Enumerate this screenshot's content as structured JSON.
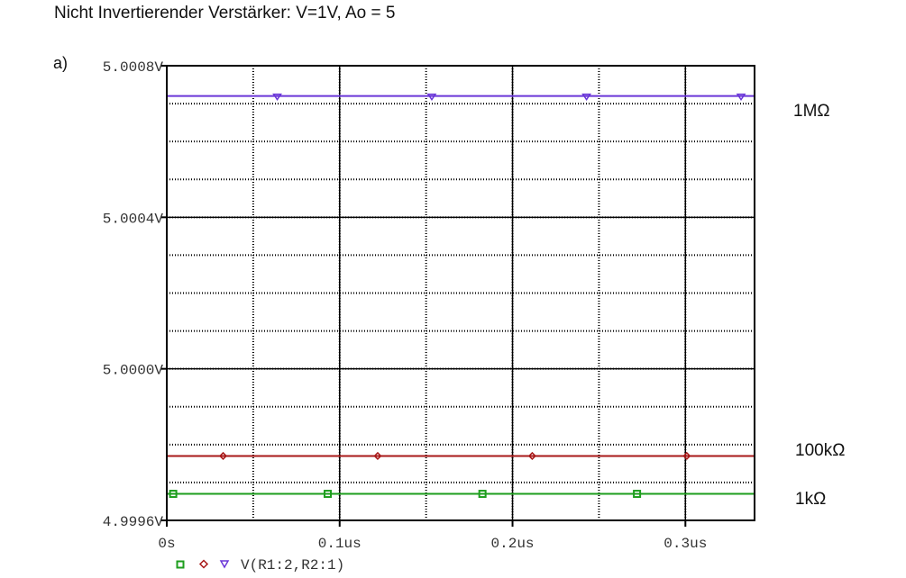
{
  "page": {
    "title": "Nicht Invertierender Verstärker: V=1V, Ao = 5",
    "panel_label": "a)"
  },
  "annotations": {
    "r_1meg": "1MΩ",
    "r_100k": "100kΩ",
    "r_1k": "1kΩ"
  },
  "legend": {
    "trace_label": "V(R1:2,R2:1)"
  },
  "chart_data": {
    "type": "line",
    "title": "",
    "xlabel": "",
    "ylabel": "",
    "x_unit": "us",
    "xlim": [
      0,
      0.34
    ],
    "ylim": [
      4.9996,
      5.0008
    ],
    "x_ticks": [
      0,
      0.1,
      0.2,
      0.3
    ],
    "x_tick_labels": [
      "0s",
      "0.1us",
      "0.2us",
      "0.3us"
    ],
    "y_ticks": [
      4.9996,
      5.0,
      5.0004,
      5.0008
    ],
    "y_tick_labels": [
      "4.9996V",
      "5.0000V",
      "5.0004V",
      "5.0008V"
    ],
    "grid": true,
    "x_minor_per_major": 2,
    "y_minor_per_major": 4,
    "series": [
      {
        "label": "1MΩ",
        "color": "#6a36d8",
        "marker": "triangle-down",
        "x": [
          0,
          0.34
        ],
        "y": [
          5.00072,
          5.00072
        ],
        "marker_x": [
          0.0639,
          0.1533,
          0.2428,
          0.3322
        ]
      },
      {
        "label": "100kΩ",
        "color": "#a81818",
        "marker": "diamond",
        "x": [
          0,
          0.34
        ],
        "y": [
          4.99977,
          4.99977
        ],
        "marker_x": [
          0.0326,
          0.122,
          0.2114,
          0.3008
        ]
      },
      {
        "label": "1kΩ",
        "color": "#1e9e1e",
        "marker": "square",
        "x": [
          0,
          0.34
        ],
        "y": [
          4.99967,
          4.99967
        ],
        "marker_x": [
          0.0037,
          0.0931,
          0.1826,
          0.272
        ]
      }
    ]
  }
}
